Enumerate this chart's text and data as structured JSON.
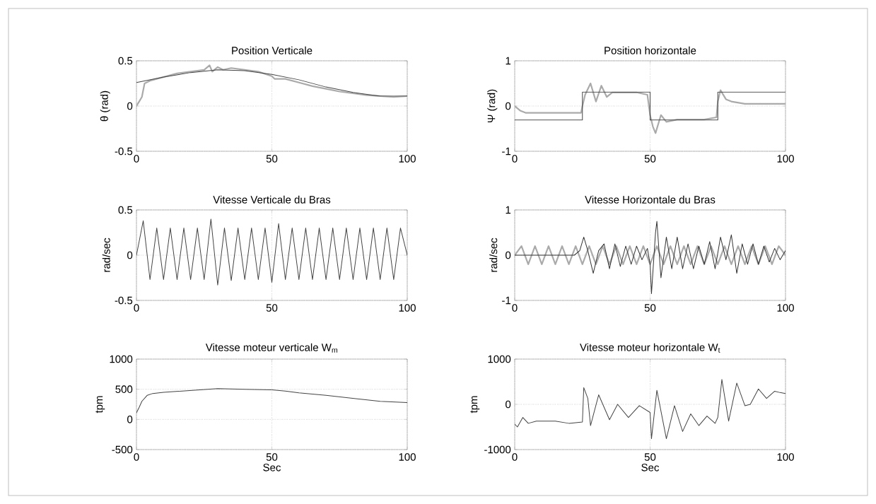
{
  "chart_data": [
    {
      "type": "line",
      "title": "Position Verticale",
      "ylabel": "θ (rad)",
      "xlim": [
        0,
        100
      ],
      "ylim": [
        -0.5,
        0.5
      ],
      "xticks": [
        0,
        50,
        100
      ],
      "yticks": [
        -0.5,
        0,
        0.5
      ],
      "grid": true,
      "series": [
        {
          "color": "#aaaaaa",
          "x": [
            0,
            1,
            2,
            3,
            5,
            10,
            15,
            20,
            25,
            27,
            28,
            30,
            32,
            35,
            40,
            45,
            50,
            51,
            55,
            60,
            65,
            70,
            75,
            80,
            85,
            90,
            95,
            100
          ],
          "values": [
            0,
            0.05,
            0.1,
            0.25,
            0.28,
            0.32,
            0.36,
            0.38,
            0.4,
            0.45,
            0.38,
            0.43,
            0.4,
            0.42,
            0.4,
            0.38,
            0.33,
            0.3,
            0.3,
            0.26,
            0.22,
            0.19,
            0.16,
            0.14,
            0.12,
            0.11,
            0.1,
            0.11
          ]
        },
        {
          "color": "#444444",
          "x": [
            0,
            10,
            20,
            30,
            40,
            50,
            60,
            70,
            80,
            90,
            100
          ],
          "values": [
            0.26,
            0.32,
            0.37,
            0.4,
            0.39,
            0.35,
            0.29,
            0.21,
            0.15,
            0.11,
            0.11
          ]
        }
      ]
    },
    {
      "type": "line",
      "title": "Position horizontale",
      "ylabel": "Ψ (rad)",
      "xlim": [
        0,
        100
      ],
      "ylim": [
        -1,
        1
      ],
      "xticks": [
        0,
        50,
        100
      ],
      "yticks": [
        -1,
        0,
        1
      ],
      "grid": true,
      "series": [
        {
          "color": "#aaaaaa",
          "x": [
            0,
            2,
            4,
            10,
            20,
            24.5,
            25,
            26,
            28,
            30,
            32,
            34,
            36,
            40,
            45,
            49,
            50,
            51,
            52,
            54,
            56,
            60,
            65,
            70,
            74.5,
            75,
            76,
            78,
            80,
            85,
            90,
            95,
            100
          ],
          "values": [
            0,
            -0.1,
            -0.15,
            -0.15,
            -0.15,
            -0.15,
            0,
            0.25,
            0.5,
            0.1,
            0.45,
            0.2,
            0.3,
            0.3,
            0.3,
            0.25,
            -0.2,
            -0.45,
            -0.6,
            -0.2,
            -0.35,
            -0.3,
            -0.3,
            -0.3,
            -0.25,
            0.1,
            0.35,
            0.15,
            0.1,
            0.05,
            0.05,
            0.05,
            0.05
          ]
        },
        {
          "color": "#444444",
          "x": [
            0,
            25,
            25,
            50,
            50,
            75,
            75,
            100
          ],
          "values": [
            -0.31,
            -0.31,
            0.31,
            0.31,
            -0.31,
            -0.31,
            0.31,
            0.31
          ]
        }
      ]
    },
    {
      "type": "line",
      "title": "Vitesse Verticale du Bras",
      "ylabel": "rad/sec",
      "xlim": [
        0,
        100
      ],
      "ylim": [
        -0.5,
        0.5
      ],
      "xticks": [
        0,
        50,
        100
      ],
      "yticks": [
        -0.5,
        0,
        0.5
      ],
      "grid": true,
      "series": [
        {
          "color": "#444444",
          "x": [
            0,
            2.5,
            5,
            7.5,
            10,
            12.5,
            15,
            17.5,
            20,
            22.5,
            25,
            27.5,
            30,
            32.5,
            35,
            37.5,
            40,
            42.5,
            45,
            47.5,
            50,
            52.5,
            55,
            57.5,
            60,
            62.5,
            65,
            67.5,
            70,
            72.5,
            75,
            77.5,
            80,
            82.5,
            85,
            87.5,
            90,
            92.5,
            95,
            97.5,
            100
          ],
          "values": [
            0,
            0.38,
            -0.27,
            0.3,
            -0.27,
            0.3,
            -0.27,
            0.3,
            -0.27,
            0.3,
            -0.27,
            0.4,
            -0.33,
            0.3,
            -0.28,
            0.3,
            -0.27,
            0.3,
            -0.27,
            0.3,
            -0.3,
            0.35,
            -0.27,
            0.3,
            -0.27,
            0.3,
            -0.27,
            0.3,
            -0.27,
            0.3,
            -0.27,
            0.3,
            -0.27,
            0.3,
            -0.27,
            0.3,
            -0.27,
            0.3,
            -0.27,
            0.3,
            0
          ]
        }
      ]
    },
    {
      "type": "line",
      "title": "Vitesse Horizontale du Bras",
      "ylabel": "rad/sec",
      "xlim": [
        0,
        100
      ],
      "ylim": [
        -1,
        1
      ],
      "xticks": [
        0,
        50,
        100
      ],
      "yticks": [
        -1,
        0,
        1
      ],
      "grid": true,
      "series": [
        {
          "color": "#aaaaaa",
          "x": [
            0,
            2.5,
            5,
            7.5,
            10,
            12.5,
            15,
            17.5,
            20,
            22.5,
            25,
            27.5,
            30,
            32.5,
            35,
            37.5,
            40,
            42.5,
            45,
            47.5,
            50,
            52.5,
            55,
            57.5,
            60,
            62.5,
            65,
            67.5,
            70,
            72.5,
            75,
            77.5,
            80,
            82.5,
            85,
            87.5,
            90,
            92.5,
            95,
            97.5,
            100
          ],
          "values": [
            0,
            0.2,
            -0.2,
            0.2,
            -0.2,
            0.2,
            -0.2,
            0.2,
            -0.2,
            0.2,
            -0.2,
            0.2,
            -0.2,
            0.2,
            -0.2,
            0.2,
            -0.2,
            0.2,
            -0.2,
            0.2,
            -0.2,
            0.2,
            -0.2,
            0.2,
            -0.2,
            0.2,
            -0.2,
            0.2,
            -0.2,
            0.2,
            -0.2,
            0.2,
            -0.2,
            0.2,
            -0.2,
            0.2,
            -0.2,
            0.2,
            -0.2,
            0.2,
            0
          ]
        },
        {
          "color": "#333333",
          "x": [
            0,
            22,
            24,
            25.5,
            27,
            29,
            31,
            33,
            35,
            37,
            39,
            41,
            43,
            45,
            47,
            49,
            50,
            50.5,
            52,
            52.5,
            54,
            56,
            58,
            60,
            62,
            64,
            66,
            68,
            70,
            72,
            74,
            76,
            78,
            80,
            82,
            84,
            86,
            88,
            90,
            92,
            94,
            96,
            98,
            100
          ],
          "values": [
            0,
            0,
            0.1,
            0.4,
            0.1,
            -0.4,
            0.1,
            0.25,
            -0.3,
            0.25,
            -0.25,
            0.2,
            -0.2,
            0.2,
            -0.1,
            0.15,
            -0.2,
            -0.85,
            0.5,
            0.75,
            -0.5,
            0.4,
            -0.3,
            0.4,
            -0.3,
            0.25,
            -0.3,
            0.2,
            -0.2,
            0.3,
            -0.3,
            0.4,
            -0.1,
            0.45,
            -0.4,
            0.25,
            -0.2,
            0.25,
            -0.2,
            0.2,
            -0.15,
            0.15,
            -0.1,
            0.1
          ]
        }
      ]
    },
    {
      "type": "line",
      "title": "Vitesse moteur verticale W$_{m}$",
      "xlabel": "Sec",
      "ylabel": "tpm",
      "xlim": [
        0,
        100
      ],
      "ylim": [
        -500,
        1000
      ],
      "xticks": [
        0,
        50,
        100
      ],
      "yticks": [
        -500,
        0,
        500,
        1000
      ],
      "grid": true,
      "series": [
        {
          "color": "#444444",
          "x": [
            0,
            1,
            2,
            4,
            6,
            10,
            20,
            30,
            40,
            50,
            55,
            60,
            70,
            80,
            90,
            100
          ],
          "values": [
            110,
            200,
            300,
            400,
            430,
            450,
            480,
            510,
            500,
            490,
            470,
            440,
            400,
            350,
            300,
            280
          ]
        }
      ]
    },
    {
      "type": "line",
      "title": "Vitesse moteur horizontale W$_{t}$",
      "xlabel": "Sec",
      "ylabel": "tpm",
      "xlim": [
        0,
        100
      ],
      "ylim": [
        -1000,
        1000
      ],
      "xticks": [
        0,
        50,
        100
      ],
      "yticks": [
        -1000,
        0,
        1000
      ],
      "grid": true,
      "series": [
        {
          "color": "#444444",
          "x": [
            0,
            1,
            3,
            5,
            8,
            15,
            20,
            25,
            25.5,
            27,
            28,
            31,
            35,
            38,
            42,
            46,
            50,
            50.5,
            52.5,
            56,
            59,
            62,
            65,
            68,
            71,
            74,
            75,
            76.5,
            79,
            82,
            85,
            87,
            90,
            93,
            96,
            98,
            100
          ],
          "values": [
            -440,
            -500,
            -290,
            -420,
            -370,
            -370,
            -420,
            -390,
            370,
            130,
            -470,
            210,
            -340,
            0,
            -290,
            -30,
            -180,
            -760,
            310,
            -760,
            -30,
            -600,
            -210,
            -470,
            -260,
            -420,
            -290,
            550,
            -370,
            470,
            -30,
            0,
            340,
            130,
            290,
            260,
            240
          ]
        }
      ]
    }
  ]
}
